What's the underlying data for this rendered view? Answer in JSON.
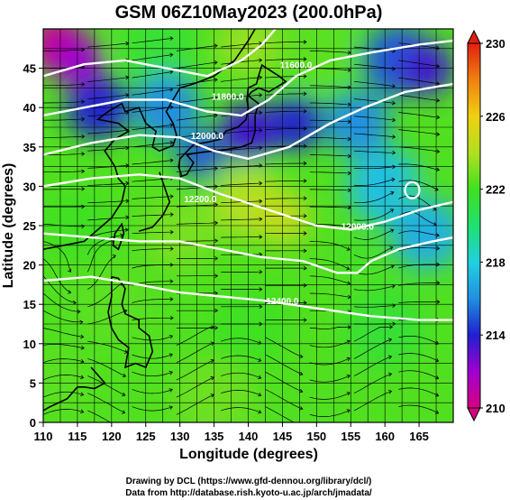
{
  "chart_data": {
    "type": "heatmap",
    "title": "GSM 06Z10May2023 (200.0hPa)",
    "xlabel": "Longitude (degrees)",
    "ylabel": "Latitude  (degrees)",
    "xlim": [
      110,
      170
    ],
    "ylim": [
      0,
      50
    ],
    "x_ticks": [
      "110",
      "115",
      "120",
      "125",
      "130",
      "135",
      "140",
      "145",
      "150",
      "155",
      "160",
      "165"
    ],
    "y_ticks": [
      "0",
      "5",
      "10",
      "15",
      "20",
      "25",
      "30",
      "35",
      "40",
      "45"
    ],
    "x_tick_values": [
      110,
      115,
      120,
      125,
      130,
      135,
      140,
      145,
      150,
      155,
      160,
      165
    ],
    "y_tick_values": [
      0,
      5,
      10,
      15,
      20,
      25,
      30,
      35,
      40,
      45
    ],
    "colorbar": {
      "min": 210,
      "max": 230,
      "labels": [
        "230",
        "226",
        "222",
        "218",
        "214",
        "210"
      ],
      "label_values": [
        230,
        226,
        222,
        218,
        214,
        210
      ],
      "colors": [
        "#d60080",
        "#a000d0",
        "#2020d0",
        "#2090e0",
        "#20d0e0",
        "#20e070",
        "#40e020",
        "#b0e020",
        "#f0d010",
        "#f08010",
        "#e02010"
      ]
    },
    "contour_labels": [
      {
        "text": "11600.0",
        "lon": 147,
        "lat": 45
      },
      {
        "text": "11800.0",
        "lon": 137,
        "lat": 41
      },
      {
        "text": "12000.0",
        "lon": 134,
        "lat": 36
      },
      {
        "text": "12000.0",
        "lon": 156,
        "lat": 24.5
      },
      {
        "text": "12200.0",
        "lon": 133,
        "lat": 28
      },
      {
        "text": "12400.0",
        "lon": 145,
        "lat": 15
      }
    ],
    "gridlines": true,
    "streamlines": true
  },
  "credits": {
    "line1": "Drawing by DCL (https://www.gfd-dennou.org/library/dcl/)",
    "line2": "Data from http://database.rish.kyoto-u.ac.jp/arch/jmadata/"
  }
}
